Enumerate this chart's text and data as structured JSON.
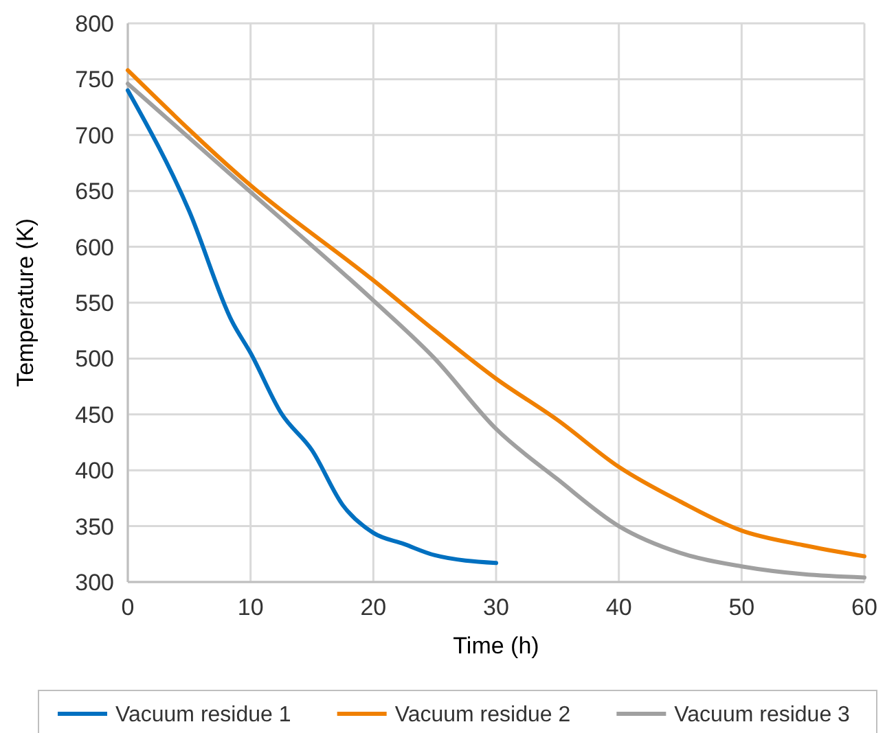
{
  "chart_data": {
    "type": "line",
    "xlabel": "Time (h)",
    "ylabel": "Temperature (K)",
    "xlim": [
      0,
      60
    ],
    "xticks": [
      0,
      10,
      20,
      30,
      40,
      50,
      60
    ],
    "ylim": [
      300,
      800
    ],
    "yticks": [
      300,
      350,
      400,
      450,
      500,
      550,
      600,
      650,
      700,
      750,
      800
    ],
    "grid": true,
    "legend": "bottom",
    "line_style": "solid",
    "marker": "none",
    "series": [
      {
        "name": "Vacuum residue 1",
        "color": "#0070c0",
        "x": [
          0,
          5,
          8.5,
          10,
          12.5,
          15,
          17.5,
          20,
          22.5,
          25,
          30
        ],
        "values": [
          740,
          632,
          533,
          505,
          451,
          418,
          369,
          344,
          334,
          324,
          317
        ]
      },
      {
        "name": "Vacuum residue 2",
        "color": "#f08000",
        "x": [
          0,
          10,
          20,
          25,
          30,
          35,
          40,
          45,
          50,
          55,
          60
        ],
        "values": [
          758,
          655,
          570,
          525,
          482,
          445,
          403,
          372,
          346,
          333,
          323
        ]
      },
      {
        "name": "Vacuum residue 3",
        "color": "#a0a0a0",
        "x": [
          0,
          10,
          20,
          25,
          30,
          35,
          40,
          45,
          50,
          55,
          60
        ],
        "values": [
          746,
          649,
          552,
          500,
          437,
          392,
          350,
          326,
          314,
          307,
          304
        ]
      }
    ]
  }
}
